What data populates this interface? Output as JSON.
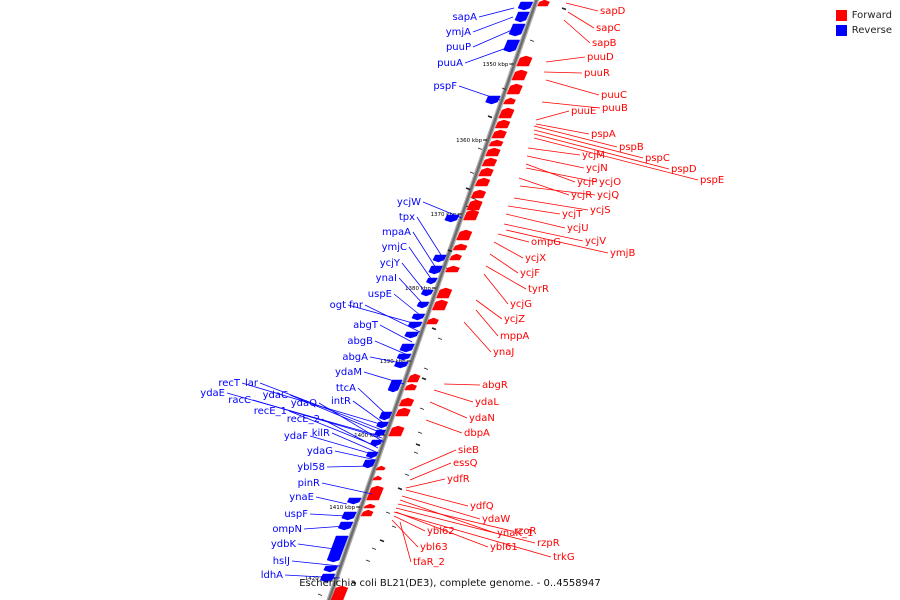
{
  "caption": "Escherichia coli BL21(DE3), complete genome. - 0..4558947",
  "legend": [
    {
      "label": "Forward",
      "color": "#ff0000"
    },
    {
      "label": "Reverse",
      "color": "#0000ff"
    }
  ],
  "colors": {
    "forward": "#ff0000",
    "reverse": "#0000ff",
    "backbone": "#777777"
  },
  "ticks": [
    "1350 kbp",
    "1360 kbp",
    "1370 kbp",
    "1380 kbp",
    "1390 kbp",
    "1400 kbp",
    "1410 kbp",
    "1420 kbp"
  ],
  "reverse_genes": [
    "sapA",
    "ymjA",
    "puuP",
    "puuA",
    "pspF",
    "ycjW",
    "tpx",
    "mpaA",
    "ymjC",
    "ycjY",
    "ynaI",
    "uspE",
    "ogt",
    "fnr",
    "abgT",
    "abgB",
    "abgA",
    "ydaM",
    "ttcA",
    "intR",
    "recT",
    "lar",
    "ydaE",
    "racC",
    "ydaC",
    "ydaQ",
    "recE_1",
    "recE_2",
    "ydaF",
    "kilR",
    "ydaG",
    "ybl58",
    "pinR",
    "ynaE",
    "uspF",
    "ompN",
    "ydbK",
    "hslJ",
    "ldhA"
  ],
  "forward_genes": [
    "sapD",
    "sapC",
    "sapB",
    "puuD",
    "puuR",
    "puuC",
    "puuB",
    "puuE",
    "pspA",
    "pspB",
    "pspC",
    "pspD",
    "pspE",
    "ycjM",
    "ycjN",
    "ycjP",
    "ycjO",
    "ycjR",
    "ycjQ",
    "ycjS",
    "ycjT",
    "ycjU",
    "ompG",
    "ycjV",
    "ymjB",
    "ycjX",
    "ycjF",
    "tyrR",
    "ycjG",
    "ycjZ",
    "mppA",
    "ynaJ",
    "abgR",
    "ydaL",
    "ydaN",
    "dbpA",
    "sieB",
    "essQ",
    "ydfR",
    "ydfQ",
    "ydaW",
    "ynaK_1",
    "rzoR",
    "rzpR",
    "trkG",
    "ybl62",
    "ybl63",
    "ybl61",
    "tfaR_2"
  ]
}
